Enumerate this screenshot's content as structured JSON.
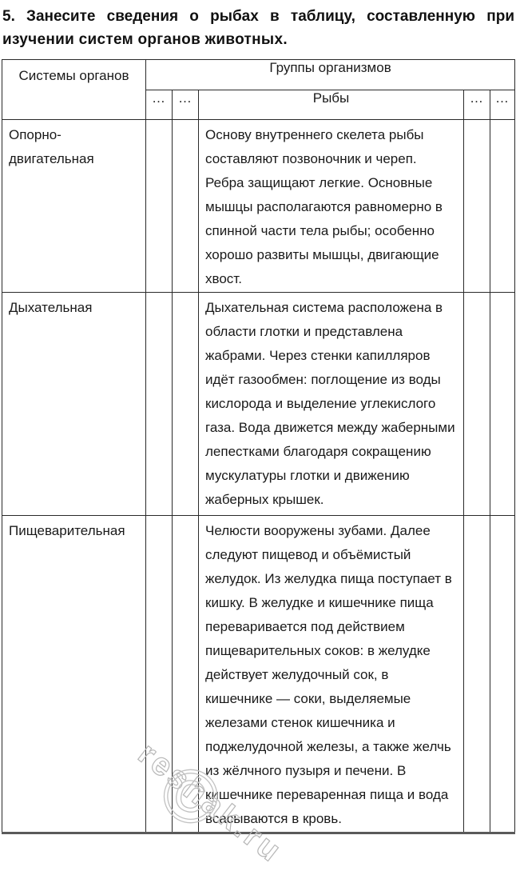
{
  "page": {
    "title_line1": "5. Занесите сведения о рыбах в таблицу, составленную при",
    "title_line2": "изучении систем органов животных."
  },
  "table": {
    "system_col_header": "Системы органов",
    "group_header": "Группы организмов",
    "fish_header": "Рыбы",
    "dots": "…",
    "rows": [
      {
        "system": "Опорно-двигательная",
        "fish": "Основу внутреннего скелета рыбы составляют позвоночник и череп. Ребра защищают легкие. Основные мышцы располагаются равномерно в спинной части тела рыбы; особенно хорошо развиты мышцы, двигающие хвост."
      },
      {
        "system": "Дыхательная",
        "fish": "Дыхательная система расположена в области глотки и представлена жабрами. Через стенки капилляров идёт газообмен: поглощение из воды кислорода и выделение углекислого газа. Вода движется между жаберными лепестками благодаря сокращению мускулатуры глотки и движению жаберных крышек."
      },
      {
        "system": "Пищеварительная",
        "fish": "Челюсти вооружены зубами. Далее следуют пищевод и объёмистый желудок. Из желудка пища поступает в кишку. В желудке и кишечнике пища переваривается под действием пищеварительных соков: в желудке действует желудочный сок, в кишечнике — соки, выделяемые железами стенок кишечника и поджелудочной железы, а также желчь из жёлчного пузыря и печени. В кишечнике переваренная пища и вода всасываются в кровь."
      }
    ]
  },
  "watermark": {
    "text": "reshak.ru",
    "symbol": "©"
  }
}
